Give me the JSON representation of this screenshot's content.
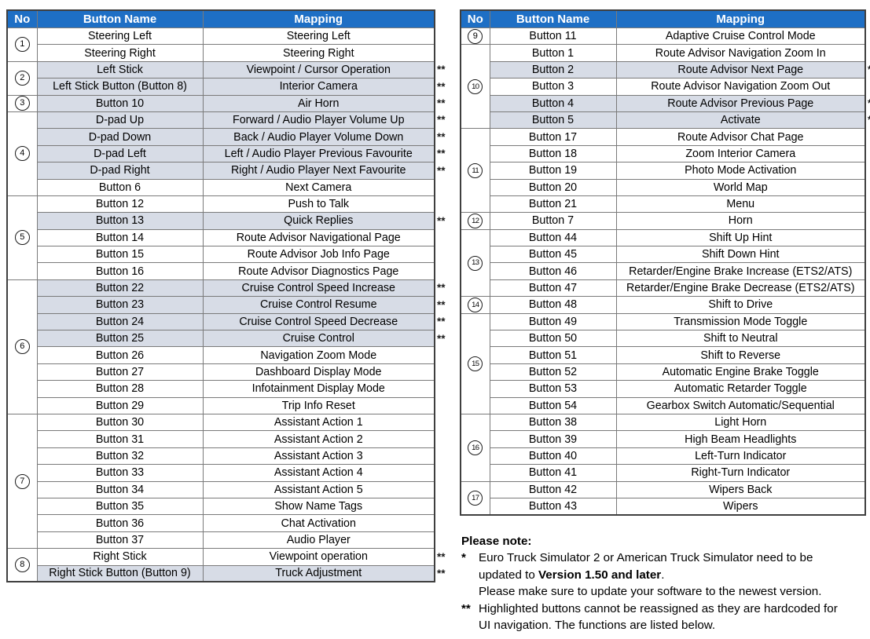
{
  "colors": {
    "header_bg": "#1e6fc5",
    "header_text": "#ffffff",
    "row_highlight": "#d7dce6",
    "inner_border": "#7a7a7a",
    "outer_border": "#3f3f3f"
  },
  "table_headers": [
    "No",
    "Button Name",
    "Mapping"
  ],
  "left_table": {
    "groups": [
      {
        "no": "1",
        "rows": [
          {
            "button": "Steering Left",
            "mapping": "Steering Left",
            "highlighted": false,
            "marker": ""
          },
          {
            "button": "Steering Right",
            "mapping": "Steering Right",
            "highlighted": false,
            "marker": ""
          }
        ]
      },
      {
        "no": "2",
        "rows": [
          {
            "button": "Left Stick",
            "mapping": "Viewpoint / Cursor Operation",
            "highlighted": true,
            "marker": "**"
          },
          {
            "button": "Left Stick Button (Button 8)",
            "mapping": "Interior Camera",
            "highlighted": true,
            "marker": "**"
          }
        ]
      },
      {
        "no": "3",
        "rows": [
          {
            "button": "Button 10",
            "mapping": "Air Horn",
            "highlighted": true,
            "marker": "**"
          }
        ]
      },
      {
        "no": "4",
        "rows": [
          {
            "button": "D-pad Up",
            "mapping": "Forward / Audio Player Volume Up",
            "highlighted": true,
            "marker": "**"
          },
          {
            "button": "D-pad Down",
            "mapping": "Back / Audio Player Volume Down",
            "highlighted": true,
            "marker": "**"
          },
          {
            "button": "D-pad Left",
            "mapping": "Left / Audio Player Previous Favourite",
            "highlighted": true,
            "marker": "**"
          },
          {
            "button": "D-pad Right",
            "mapping": "Right / Audio Player Next Favourite",
            "highlighted": true,
            "marker": "**"
          },
          {
            "button": "Button 6",
            "mapping": "Next Camera",
            "highlighted": false,
            "marker": ""
          }
        ]
      },
      {
        "no": "5",
        "rows": [
          {
            "button": "Button 12",
            "mapping": "Push to Talk",
            "highlighted": false,
            "marker": ""
          },
          {
            "button": "Button 13",
            "mapping": "Quick Replies",
            "highlighted": true,
            "marker": "**"
          },
          {
            "button": "Button 14",
            "mapping": "Route Advisor Navigational Page",
            "highlighted": false,
            "marker": ""
          },
          {
            "button": "Button 15",
            "mapping": "Route Advisor Job Info Page",
            "highlighted": false,
            "marker": ""
          },
          {
            "button": "Button 16",
            "mapping": "Route Advisor Diagnostics Page",
            "highlighted": false,
            "marker": ""
          }
        ]
      },
      {
        "no": "6",
        "rows": [
          {
            "button": "Button 22",
            "mapping": "Cruise Control Speed Increase",
            "highlighted": true,
            "marker": "**"
          },
          {
            "button": "Button 23",
            "mapping": "Cruise Control Resume",
            "highlighted": true,
            "marker": "**"
          },
          {
            "button": "Button 24",
            "mapping": "Cruise Control Speed Decrease",
            "highlighted": true,
            "marker": "**"
          },
          {
            "button": "Button 25",
            "mapping": "Cruise Control",
            "highlighted": true,
            "marker": "**"
          },
          {
            "button": "Button 26",
            "mapping": "Navigation Zoom Mode",
            "highlighted": false,
            "marker": ""
          },
          {
            "button": "Button 27",
            "mapping": "Dashboard Display Mode",
            "highlighted": false,
            "marker": ""
          },
          {
            "button": "Button 28",
            "mapping": "Infotainment Display Mode",
            "highlighted": false,
            "marker": ""
          },
          {
            "button": "Button 29",
            "mapping": "Trip Info Reset",
            "highlighted": false,
            "marker": ""
          }
        ]
      },
      {
        "no": "7",
        "rows": [
          {
            "button": "Button 30",
            "mapping": "Assistant Action 1",
            "highlighted": false,
            "marker": ""
          },
          {
            "button": "Button 31",
            "mapping": "Assistant Action 2",
            "highlighted": false,
            "marker": ""
          },
          {
            "button": "Button 32",
            "mapping": "Assistant Action 3",
            "highlighted": false,
            "marker": ""
          },
          {
            "button": "Button 33",
            "mapping": "Assistant Action 4",
            "highlighted": false,
            "marker": ""
          },
          {
            "button": "Button 34",
            "mapping": "Assistant Action 5",
            "highlighted": false,
            "marker": ""
          },
          {
            "button": "Button 35",
            "mapping": "Show Name Tags",
            "highlighted": false,
            "marker": ""
          },
          {
            "button": "Button 36",
            "mapping": "Chat Activation",
            "highlighted": false,
            "marker": ""
          },
          {
            "button": "Button 37",
            "mapping": "Audio Player",
            "highlighted": false,
            "marker": ""
          }
        ]
      },
      {
        "no": "8",
        "rows": [
          {
            "button": "Right Stick",
            "mapping": "Viewpoint operation",
            "highlighted": false,
            "marker": "**"
          },
          {
            "button": "Right Stick Button (Button 9)",
            "mapping": "Truck Adjustment",
            "highlighted": true,
            "marker": "**"
          }
        ]
      }
    ]
  },
  "right_table": {
    "groups": [
      {
        "no": "9",
        "rows": [
          {
            "button": "Button 11",
            "mapping": "Adaptive Cruise Control Mode",
            "highlighted": false,
            "marker": ""
          }
        ]
      },
      {
        "no": "10",
        "rows": [
          {
            "button": "Button 1",
            "mapping": "Route Advisor Navigation Zoom In",
            "highlighted": false,
            "marker": ""
          },
          {
            "button": "Button 2",
            "mapping": "Route Advisor Next Page",
            "highlighted": true,
            "marker": "*"
          },
          {
            "button": "Button 3",
            "mapping": "Route Advisor Navigation Zoom Out",
            "highlighted": false,
            "marker": ""
          },
          {
            "button": "Button 4",
            "mapping": "Route Advisor Previous Page",
            "highlighted": true,
            "marker": "*"
          },
          {
            "button": "Button 5",
            "mapping": "Activate",
            "highlighted": true,
            "marker": "*"
          }
        ]
      },
      {
        "no": "11",
        "rows": [
          {
            "button": "Button 17",
            "mapping": "Route Advisor Chat Page",
            "highlighted": false,
            "marker": ""
          },
          {
            "button": "Button 18",
            "mapping": "Zoom Interior Camera",
            "highlighted": false,
            "marker": ""
          },
          {
            "button": "Button 19",
            "mapping": "Photo Mode Activation",
            "highlighted": false,
            "marker": ""
          },
          {
            "button": "Button 20",
            "mapping": "World Map",
            "highlighted": false,
            "marker": ""
          },
          {
            "button": "Button 21",
            "mapping": "Menu",
            "highlighted": false,
            "marker": ""
          }
        ]
      },
      {
        "no": "12",
        "rows": [
          {
            "button": "Button 7",
            "mapping": "Horn",
            "highlighted": false,
            "marker": ""
          }
        ]
      },
      {
        "no": "13",
        "rows": [
          {
            "button": "Button 44",
            "mapping": "Shift Up Hint",
            "highlighted": false,
            "marker": ""
          },
          {
            "button": "Button 45",
            "mapping": "Shift Down Hint",
            "highlighted": false,
            "marker": ""
          },
          {
            "button": "Button 46",
            "mapping": "Retarder/Engine Brake Increase (ETS2/ATS)",
            "highlighted": false,
            "marker": ""
          },
          {
            "button": "Button 47",
            "mapping": "Retarder/Engine Brake Decrease (ETS2/ATS)",
            "highlighted": false,
            "marker": ""
          }
        ]
      },
      {
        "no": "14",
        "rows": [
          {
            "button": "Button 48",
            "mapping": "Shift to Drive",
            "highlighted": false,
            "marker": ""
          }
        ]
      },
      {
        "no": "15",
        "rows": [
          {
            "button": "Button 49",
            "mapping": "Transmission Mode Toggle",
            "highlighted": false,
            "marker": ""
          },
          {
            "button": "Button 50",
            "mapping": "Shift to Neutral",
            "highlighted": false,
            "marker": ""
          },
          {
            "button": "Button 51",
            "mapping": "Shift to Reverse",
            "highlighted": false,
            "marker": ""
          },
          {
            "button": "Button 52",
            "mapping": "Automatic Engine Brake Toggle",
            "highlighted": false,
            "marker": ""
          },
          {
            "button": "Button 53",
            "mapping": "Automatic Retarder Toggle",
            "highlighted": false,
            "marker": ""
          },
          {
            "button": "Button 54",
            "mapping": "Gearbox Switch Automatic/Sequential",
            "highlighted": false,
            "marker": ""
          }
        ]
      },
      {
        "no": "16",
        "rows": [
          {
            "button": "Button 38",
            "mapping": "Light Horn",
            "highlighted": false,
            "marker": ""
          },
          {
            "button": "Button 39",
            "mapping": "High Beam Headlights",
            "highlighted": false,
            "marker": ""
          },
          {
            "button": "Button 40",
            "mapping": "Left-Turn Indicator",
            "highlighted": false,
            "marker": ""
          },
          {
            "button": "Button 41",
            "mapping": "Right-Turn Indicator",
            "highlighted": false,
            "marker": ""
          }
        ]
      },
      {
        "no": "17",
        "rows": [
          {
            "button": "Button 42",
            "mapping": "Wipers Back",
            "highlighted": false,
            "marker": ""
          },
          {
            "button": "Button 43",
            "mapping": "Wipers",
            "highlighted": false,
            "marker": ""
          }
        ]
      }
    ]
  },
  "note": {
    "title": "Please note:",
    "single_marker": "*",
    "single_line1": "Euro Truck Simulator 2 or American Truck Simulator need to be",
    "single_line2_prefix": "updated to ",
    "single_line2_bold": "Version 1.50 and later",
    "single_line2_suffix": ".",
    "single_line3": "Please make sure to update your software to the newest version.",
    "double_marker": "**",
    "double_line1": "Highlighted buttons cannot be reassigned as they are hardcoded for",
    "double_line2": "UI navigation. The functions are listed below."
  }
}
